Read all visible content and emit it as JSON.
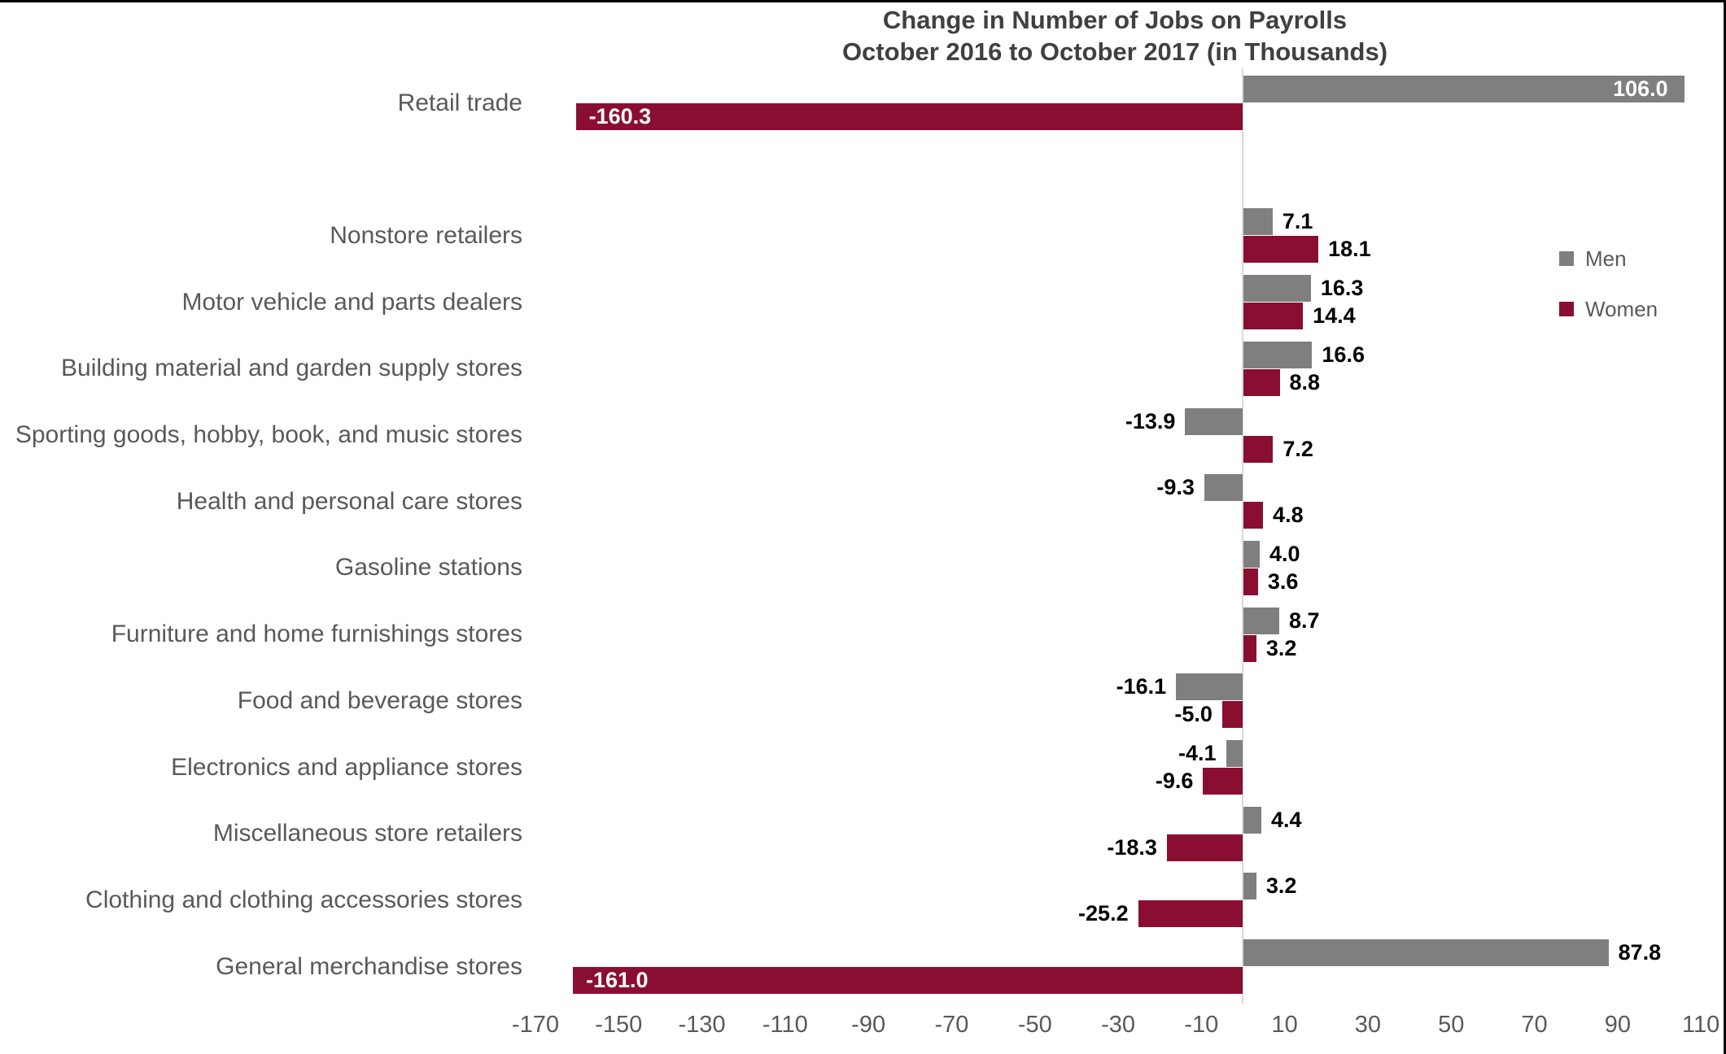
{
  "chart_data": {
    "type": "bar",
    "orientation": "horizontal",
    "title": "Change in Number of Jobs on Payrolls",
    "subtitle": "October 2016 to October 2017 (in Thousands)",
    "categories": [
      "Retail trade",
      "",
      "Nonstore retailers",
      "Motor vehicle and parts dealers",
      "Building material and garden supply stores",
      "Sporting goods, hobby, book, and music stores",
      "Health and personal care stores",
      "Gasoline stations",
      "Furniture and home furnishings stores",
      "Food and beverage stores",
      "Electronics and appliance stores",
      "Miscellaneous store retailers",
      "Clothing and clothing accessories stores",
      "General merchandise stores"
    ],
    "series": [
      {
        "name": "Men",
        "color": "#7F7F7F",
        "values": [
          106.0,
          null,
          7.1,
          16.3,
          16.6,
          -13.9,
          -9.3,
          4.0,
          8.7,
          -16.1,
          -4.1,
          4.4,
          3.2,
          87.8
        ]
      },
      {
        "name": "Women",
        "color": "#8A0E32",
        "values": [
          -160.3,
          null,
          18.1,
          14.4,
          8.8,
          7.2,
          4.8,
          3.6,
          3.2,
          -5.0,
          -9.6,
          -18.3,
          -25.2,
          -161.0
        ]
      }
    ],
    "value_label_decimals": 1,
    "xticks": [
      -170,
      -150,
      -130,
      -110,
      -90,
      -70,
      -50,
      -30,
      -10,
      10,
      30,
      50,
      70,
      90,
      110
    ],
    "xlim": [
      -180,
      115
    ],
    "grid": false,
    "legend_position": "right"
  },
  "colors": {
    "bar_men": "#7F7F7F",
    "bar_women": "#8A0E32",
    "zero_gridline": "#D9D9D9",
    "axis_text": "#595959",
    "category_text": "#595959",
    "title_text": "#404040",
    "value_label_outside": "#000000",
    "value_label_inside": "#FFFFFF",
    "legend_text": "#595959"
  }
}
